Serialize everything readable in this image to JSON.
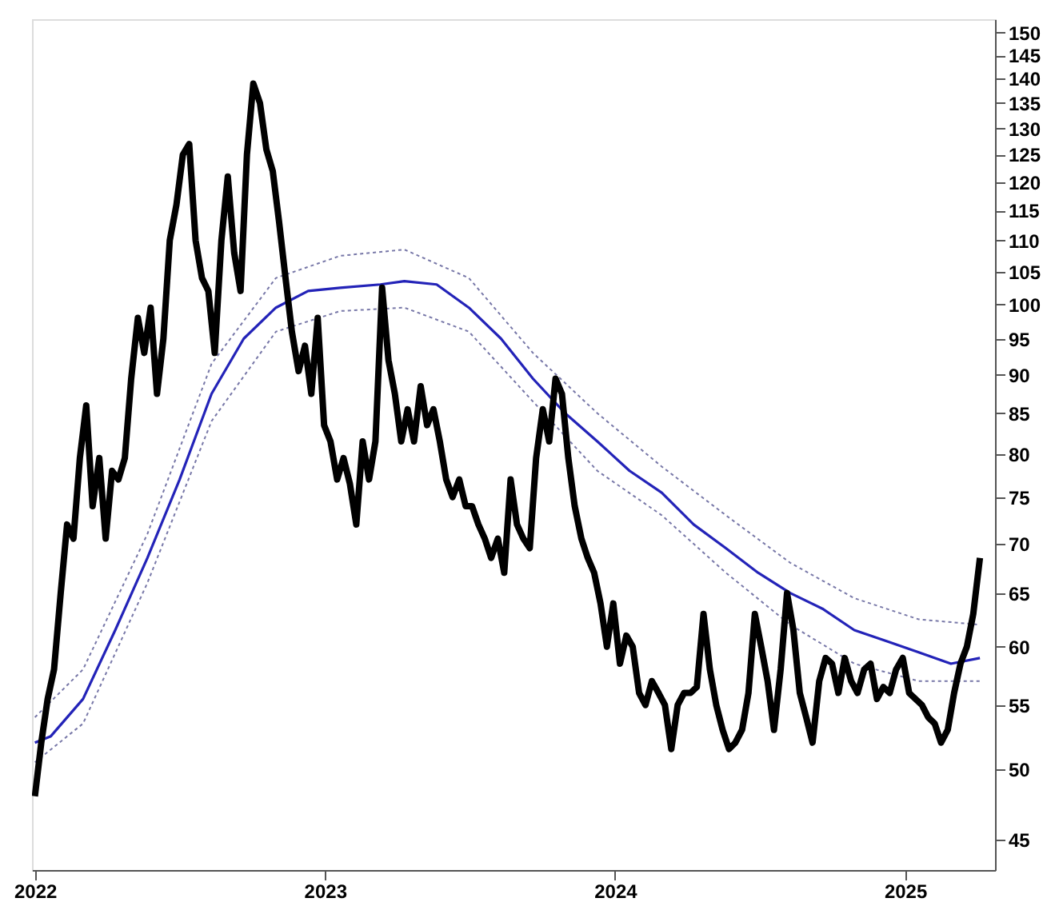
{
  "chart_data": {
    "type": "line",
    "log": true,
    "grid": false,
    "xlim": [
      2021.99,
      2025.31
    ],
    "xticks": [
      2022,
      2023,
      2024,
      2025
    ],
    "ylim": [
      43,
      153
    ],
    "yticks": [
      45,
      50,
      55,
      60,
      65,
      70,
      75,
      80,
      85,
      90,
      95,
      100,
      105,
      110,
      115,
      120,
      125,
      130,
      135,
      140,
      145,
      150
    ],
    "series": [
      {
        "line_style": "dotted",
        "color": "#7878a8",
        "x": [
          2022.0,
          2022.166,
          2022.388,
          2022.609,
          2022.831,
          2023.053,
          2023.274,
          2023.496,
          2023.717,
          2023.939,
          2024.161,
          2024.382,
          2024.604,
          2024.825,
          2025.047,
          2025.258
        ],
        "values": [
          54,
          58,
          71,
          91.5,
          104,
          107.5,
          108.5,
          104,
          93,
          85,
          78.5,
          73,
          68,
          64.5,
          62.5,
          62
        ]
      },
      {
        "line_style": "dotted",
        "color": "#7878a8",
        "x": [
          2022.0,
          2022.166,
          2022.388,
          2022.609,
          2022.831,
          2023.053,
          2023.274,
          2023.496,
          2023.717,
          2023.939,
          2024.161,
          2024.382,
          2024.604,
          2024.825,
          2025.047,
          2025.258
        ],
        "values": [
          50.5,
          53.5,
          66,
          84,
          96,
          99,
          99.5,
          96,
          86.5,
          78,
          73,
          67,
          62,
          58.5,
          57,
          57
        ]
      },
      {
        "line_style": "solid",
        "color": "#2323b8",
        "x": [
          2022.0,
          2022.055,
          2022.166,
          2022.277,
          2022.388,
          2022.499,
          2022.609,
          2022.72,
          2022.831,
          2022.942,
          2023.053,
          2023.191,
          2023.274,
          2023.385,
          2023.496,
          2023.607,
          2023.717,
          2023.828,
          2023.939,
          2024.05,
          2024.161,
          2024.271,
          2024.382,
          2024.493,
          2024.604,
          2024.715,
          2024.825,
          2024.936,
          2025.047,
          2025.158,
          2025.258
        ],
        "values": [
          52,
          52.5,
          55.5,
          61.5,
          68.5,
          77,
          87.5,
          95,
          99.5,
          102,
          102.5,
          103,
          103.5,
          103,
          99.5,
          95,
          89.5,
          85,
          81.5,
          78,
          75.5,
          72,
          69.5,
          67,
          65,
          63.5,
          61.5,
          60.5,
          59.5,
          58.5,
          59
        ]
      },
      {
        "line_style": "solid",
        "color": "#000000",
        "x": [
          2022.0,
          2022.022,
          2022.044,
          2022.066,
          2022.089,
          2022.111,
          2022.133,
          2022.155,
          2022.177,
          2022.199,
          2022.222,
          2022.244,
          2022.266,
          2022.288,
          2022.31,
          2022.332,
          2022.355,
          2022.377,
          2022.399,
          2022.421,
          2022.443,
          2022.465,
          2022.488,
          2022.51,
          2022.532,
          2022.554,
          2022.576,
          2022.598,
          2022.62,
          2022.643,
          2022.665,
          2022.687,
          2022.709,
          2022.731,
          2022.753,
          2022.776,
          2022.798,
          2022.82,
          2022.842,
          2022.864,
          2022.886,
          2022.909,
          2022.931,
          2022.953,
          2022.975,
          2022.997,
          2023.019,
          2023.042,
          2023.064,
          2023.086,
          2023.108,
          2023.13,
          2023.152,
          2023.174,
          2023.197,
          2023.219,
          2023.241,
          2023.263,
          2023.285,
          2023.307,
          2023.33,
          2023.352,
          2023.374,
          2023.396,
          2023.418,
          2023.44,
          2023.463,
          2023.485,
          2023.507,
          2023.529,
          2023.551,
          2023.573,
          2023.596,
          2023.618,
          2023.64,
          2023.662,
          2023.684,
          2023.706,
          2023.728,
          2023.751,
          2023.773,
          2023.795,
          2023.817,
          2023.839,
          2023.861,
          2023.884,
          2023.906,
          2023.928,
          2023.95,
          2023.972,
          2023.994,
          2024.017,
          2024.039,
          2024.061,
          2024.083,
          2024.105,
          2024.127,
          2024.15,
          2024.172,
          2024.194,
          2024.216,
          2024.238,
          2024.26,
          2024.282,
          2024.305,
          2024.327,
          2024.349,
          2024.371,
          2024.393,
          2024.415,
          2024.438,
          2024.46,
          2024.482,
          2024.504,
          2024.526,
          2024.548,
          2024.571,
          2024.593,
          2024.615,
          2024.637,
          2024.659,
          2024.681,
          2024.704,
          2024.726,
          2024.748,
          2024.77,
          2024.792,
          2024.814,
          2024.836,
          2024.859,
          2024.881,
          2024.903,
          2024.925,
          2024.947,
          2024.969,
          2024.992,
          2025.014,
          2025.036,
          2025.058,
          2025.08,
          2025.102,
          2025.124,
          2025.147,
          2025.169,
          2025.191,
          2025.213,
          2025.235,
          2025.258
        ],
        "values": [
          48,
          52,
          55.5,
          58,
          65,
          72,
          70.5,
          79.5,
          86,
          74,
          79.5,
          70.5,
          78,
          77,
          79.5,
          89.5,
          98,
          93,
          99.5,
          87.5,
          95,
          110,
          116,
          125,
          127,
          110,
          104,
          102,
          93,
          110,
          121,
          108,
          102,
          125,
          139,
          135,
          126,
          122,
          113,
          104,
          96,
          90.5,
          94,
          87.5,
          98,
          83.5,
          81.5,
          77,
          79.5,
          76.5,
          72,
          81.5,
          77,
          81.5,
          102.5,
          92,
          87.5,
          81.5,
          85.5,
          81.5,
          88.5,
          83.5,
          85.5,
          81.5,
          77,
          75,
          77,
          74,
          74,
          72,
          70.5,
          68.5,
          70.5,
          67,
          77,
          72,
          70.5,
          69.5,
          79.5,
          85.5,
          81.5,
          89.5,
          87.5,
          79.5,
          74,
          70.5,
          68.5,
          67,
          64,
          60,
          64,
          58.5,
          61,
          60,
          56,
          55,
          57,
          56,
          55,
          51.5,
          55,
          56,
          56,
          56.5,
          63,
          58,
          55,
          53,
          51.5,
          52,
          53,
          56,
          63,
          60,
          57,
          53,
          58,
          65,
          61.5,
          56,
          54,
          52,
          57,
          59,
          58.5,
          56,
          59,
          57,
          56,
          58,
          58.5,
          55.5,
          56.5,
          56,
          58,
          59,
          56,
          55.5,
          55,
          54,
          53.5,
          52,
          53,
          56,
          58.5,
          60,
          63,
          68.5
        ]
      }
    ]
  }
}
